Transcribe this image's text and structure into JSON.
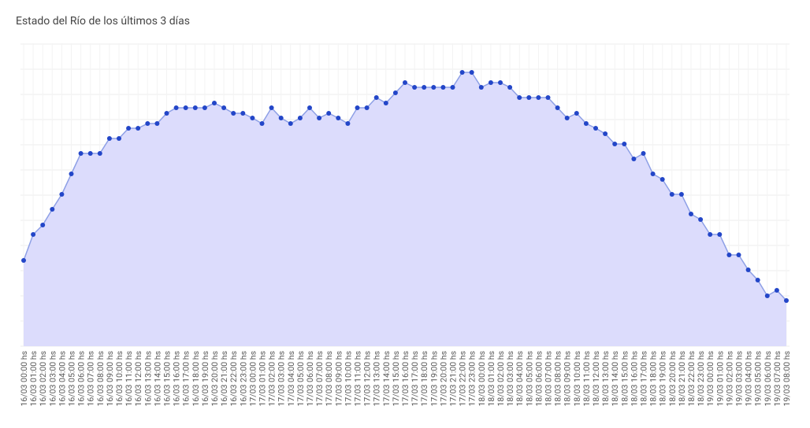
{
  "chart_data": {
    "type": "area",
    "title": "Estado del Río de los últimos 3 días",
    "categories": [
      "16/03 00:00 hs",
      "16/03 01:00 hs",
      "16/03 02:00 hs",
      "16/03 03:00 hs",
      "16/03 04:00 hs",
      "16/03 05:00 hs",
      "16/03 06:00 hs",
      "16/03 07:00 hs",
      "16/03 08:00 hs",
      "16/03 09:00 hs",
      "16/03 10:00 hs",
      "16/03 11:00 hs",
      "16/03 12:00 hs",
      "16/03 13:00 hs",
      "16/03 14:00 hs",
      "16/03 15:00 hs",
      "16/03 16:00 hs",
      "16/03 17:00 hs",
      "16/03 18:00 hs",
      "16/03 19:00 hs",
      "16/03 20:00 hs",
      "16/03 21:00 hs",
      "16/03 22:00 hs",
      "16/03 23:00 hs",
      "17/03 00:00 hs",
      "17/03 01:00 hs",
      "17/03 02:00 hs",
      "17/03 03:00 hs",
      "17/03 04:00 hs",
      "17/03 05:00 hs",
      "17/03 06:00 hs",
      "17/03 07:00 hs",
      "17/03 08:00 hs",
      "17/03 09:00 hs",
      "17/03 10:00 hs",
      "17/03 11:00 hs",
      "17/03 12:00 hs",
      "17/03 13:00 hs",
      "17/03 14:00 hs",
      "17/03 15:00 hs",
      "17/03 16:00 hs",
      "17/03 17:00 hs",
      "17/03 18:00 hs",
      "17/03 19:00 hs",
      "17/03 20:00 hs",
      "17/03 21:00 hs",
      "17/03 22:00 hs",
      "17/03 23:00 hs",
      "18/03 00:00 hs",
      "18/03 01:00 hs",
      "18/03 02:00 hs",
      "18/03 03:00 hs",
      "18/03 04:00 hs",
      "18/03 05:00 hs",
      "18/03 06:00 hs",
      "18/03 07:00 hs",
      "18/03 08:00 hs",
      "18/03 09:00 hs",
      "18/03 10:00 hs",
      "18/03 11:00 hs",
      "18/03 12:00 hs",
      "18/03 13:00 hs",
      "18/03 14:00 hs",
      "18/03 15:00 hs",
      "18/03 16:00 hs",
      "18/03 17:00 hs",
      "18/03 18:00 hs",
      "18/03 19:00 hs",
      "18/03 20:00 hs",
      "18/03 21:00 hs",
      "18/03 22:00 hs",
      "18/03 23:00 hs",
      "19/03 00:00 hs",
      "19/03 01:00 hs",
      "19/03 02:00 hs",
      "19/03 03:00 hs",
      "19/03 04:00 hs",
      "19/03 05:00 hs",
      "19/03 06:00 hs",
      "19/03 07:00 hs",
      "19/03 08:00 hs"
    ],
    "values": [
      109,
      142,
      154,
      174,
      193,
      219,
      245,
      245,
      245,
      264,
      264,
      277,
      277,
      283,
      283,
      296,
      303,
      303,
      303,
      303,
      309,
      303,
      296,
      296,
      290,
      283,
      303,
      290,
      283,
      290,
      303,
      290,
      296,
      290,
      283,
      303,
      303,
      316,
      309,
      322,
      335,
      329,
      329,
      329,
      329,
      329,
      348,
      348,
      329,
      335,
      335,
      329,
      316,
      316,
      316,
      316,
      303,
      290,
      296,
      283,
      277,
      270,
      257,
      257,
      238,
      245,
      219,
      212,
      193,
      193,
      168,
      161,
      142,
      142,
      116,
      116,
      97,
      84,
      64,
      71,
      58
    ],
    "color": "#2346c8",
    "fill": "#dcdcfc",
    "line_color": "#8ea0e6",
    "ylim": [
      0,
      385
    ],
    "grid": true
  }
}
